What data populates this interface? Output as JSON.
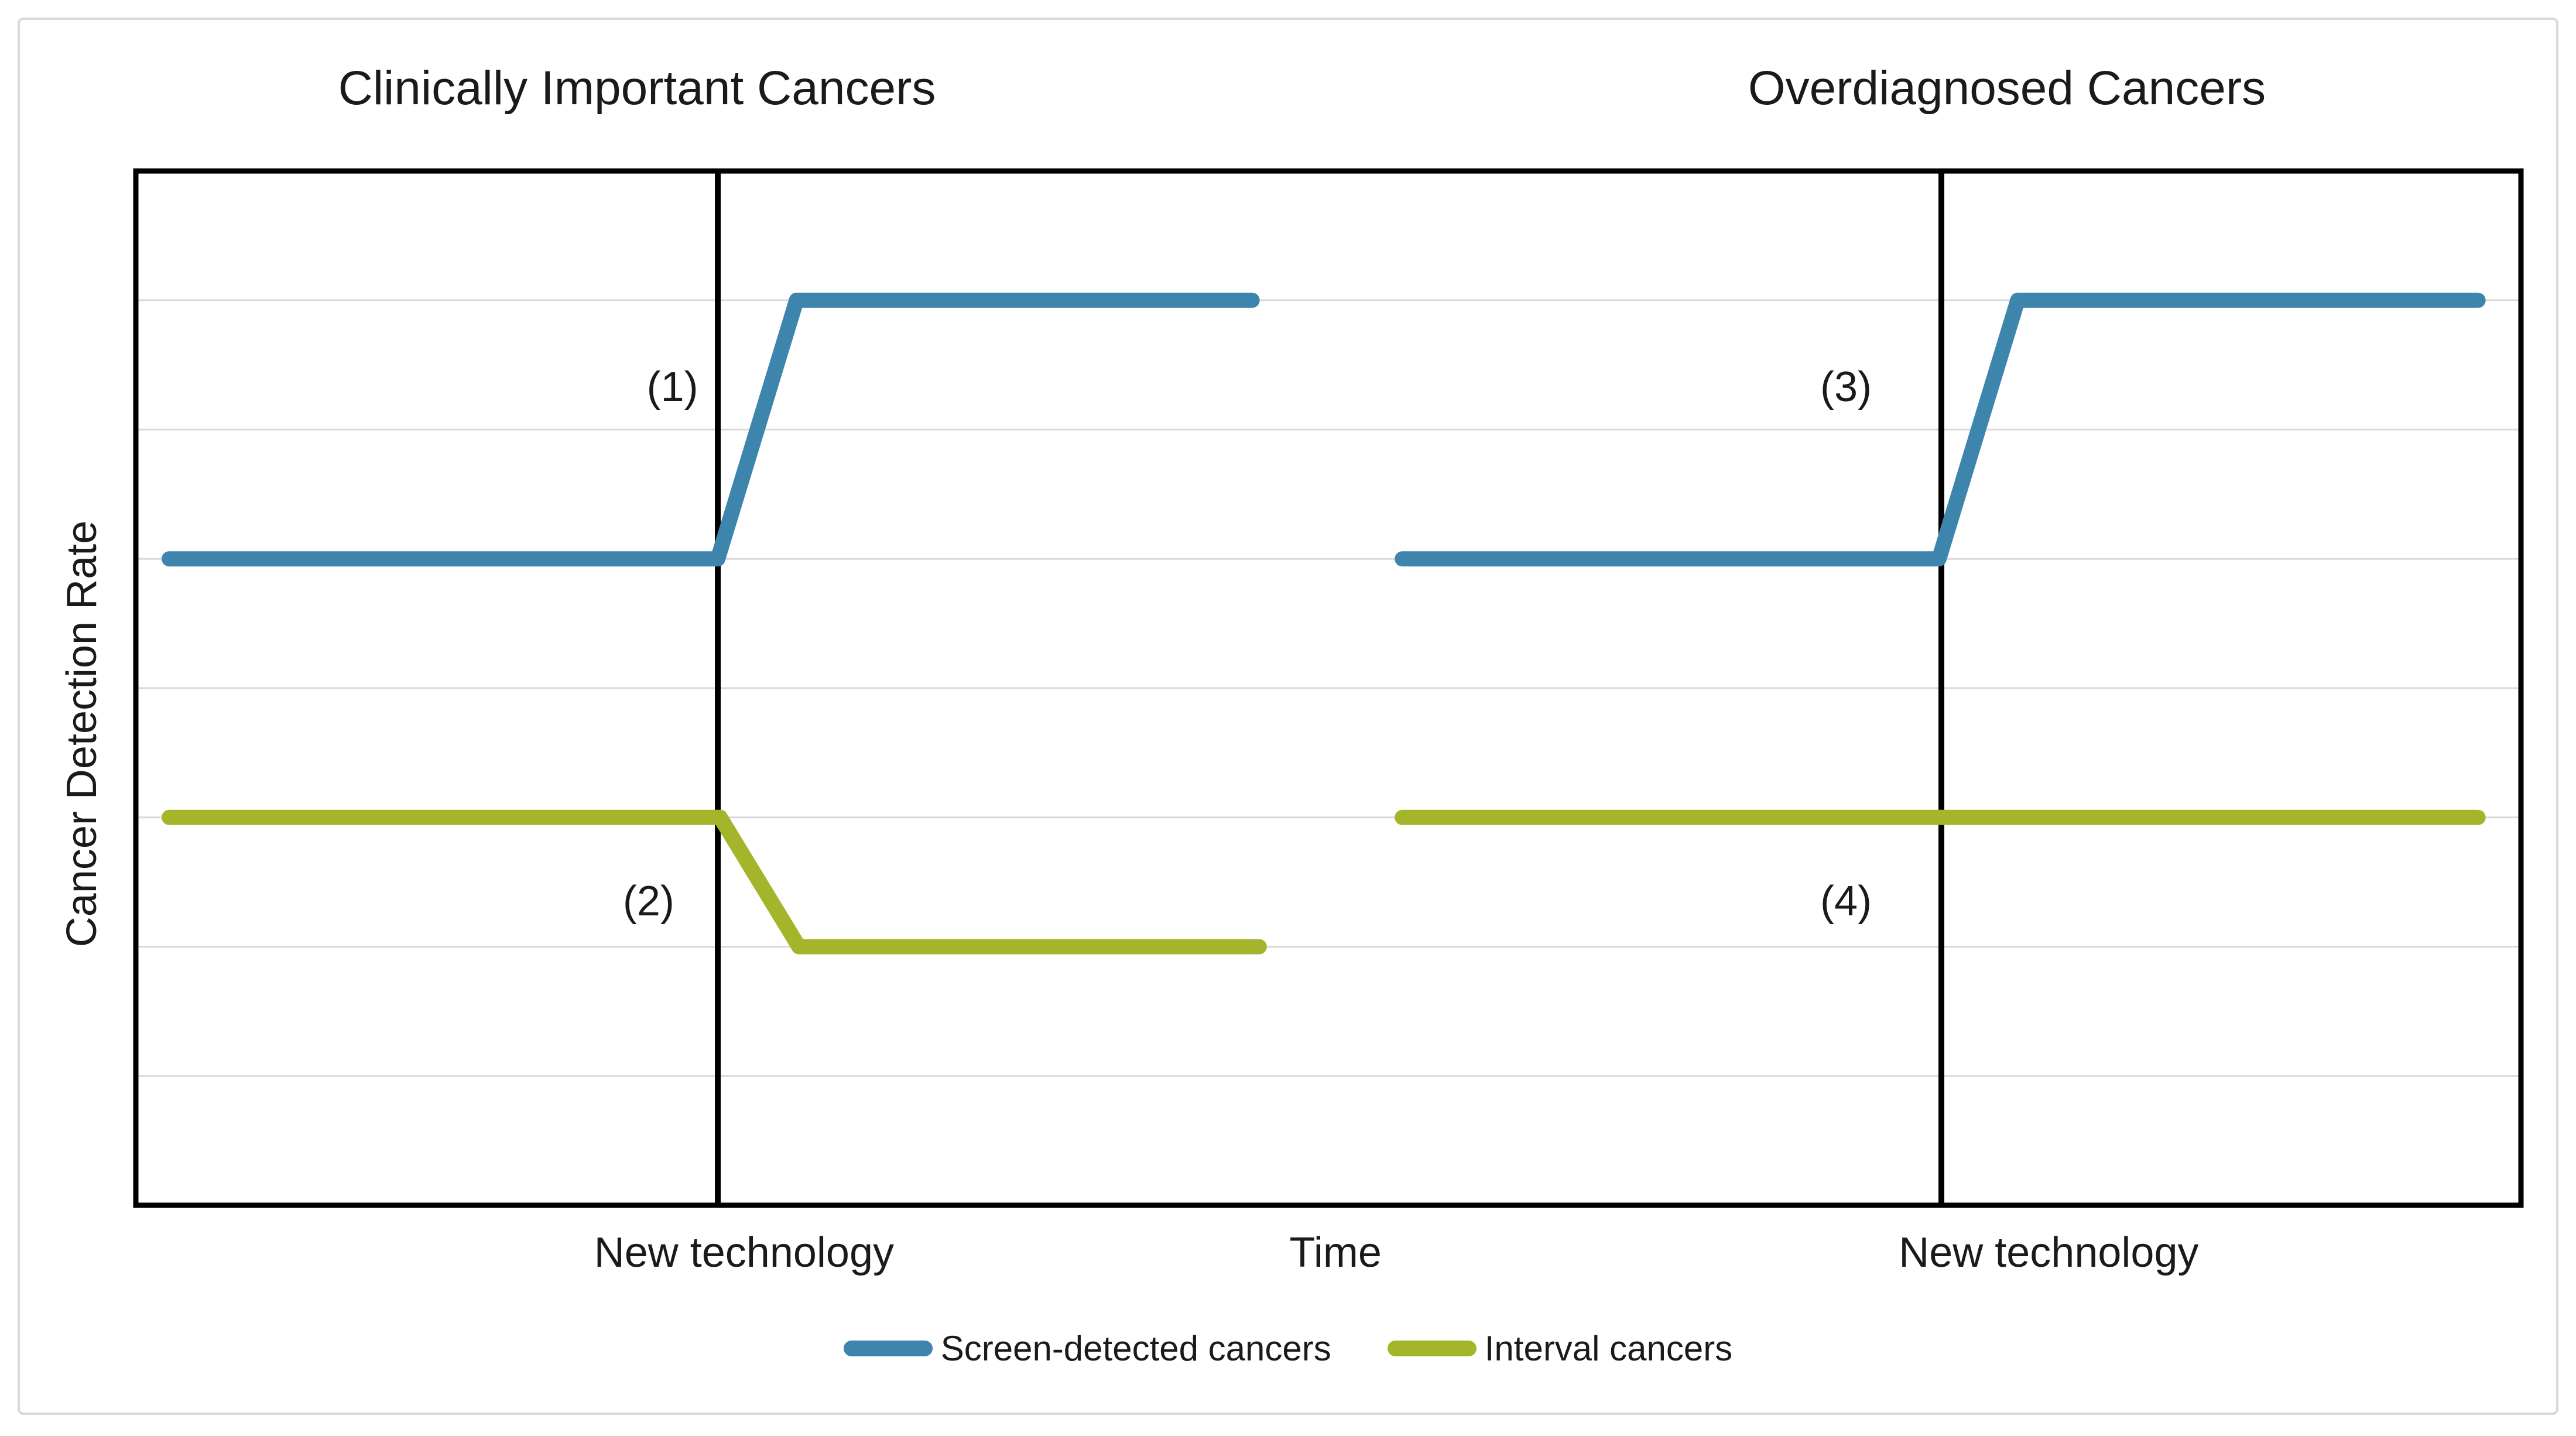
{
  "chart_data": {
    "type": "line",
    "panel_titles": [
      "Clinically Important Cancers",
      "Overdiagnosed Cancers"
    ],
    "ylabel": "Cancer Detection Rate",
    "xlabel": "Time",
    "ylim": [
      0,
      8
    ],
    "xlim": [
      0,
      100
    ],
    "grid": "horizontal-only",
    "gridlines_y": [
      1,
      2,
      3,
      4,
      5,
      6,
      7
    ],
    "legend_position": "bottom-center",
    "event_line_label": "New technology",
    "event_lines_x": [
      24.4,
      75.7
    ],
    "x_axis_texts": [
      {
        "text": "New technology",
        "x": 25.5
      },
      {
        "text": "Time",
        "x": 50.3
      },
      {
        "text": "New technology",
        "x": 80.2
      }
    ],
    "series": [
      {
        "name": "Screen-detected cancers",
        "panel": "left",
        "color": "#3d85ad",
        "points": [
          [
            1.4,
            5
          ],
          [
            24.4,
            5
          ],
          [
            27.7,
            7
          ],
          [
            46.8,
            7
          ]
        ]
      },
      {
        "name": "Interval cancers",
        "panel": "left",
        "color": "#a4b52c",
        "points": [
          [
            1.4,
            3
          ],
          [
            24.5,
            3
          ],
          [
            27.8,
            2
          ],
          [
            47.1,
            2
          ]
        ]
      },
      {
        "name": "Screen-detected cancers",
        "panel": "right",
        "color": "#3d85ad",
        "points": [
          [
            53.1,
            5
          ],
          [
            75.6,
            5
          ],
          [
            78.9,
            7
          ],
          [
            98.2,
            7
          ]
        ]
      },
      {
        "name": "Interval cancers",
        "panel": "right",
        "color": "#a4b52c",
        "points": [
          [
            53.1,
            3
          ],
          [
            98.2,
            3
          ]
        ]
      }
    ],
    "annotations": [
      {
        "label": "(1)",
        "x": 22.5,
        "y": 6.33
      },
      {
        "label": "(2)",
        "x": 21.5,
        "y": 2.35
      },
      {
        "label": "(3)",
        "x": 71.7,
        "y": 6.33
      },
      {
        "label": "(4)",
        "x": 71.7,
        "y": 2.35
      }
    ]
  },
  "legend": {
    "items": [
      {
        "label": "Screen-detected cancers",
        "color": "#3d85ad"
      },
      {
        "label": "Interval cancers",
        "color": "#a4b52c"
      }
    ]
  },
  "style_colors": {
    "plot_border": "#000000",
    "event_line": "#000000",
    "gridline": "#d9d9d9",
    "frame_border": "#d9d9d9"
  }
}
